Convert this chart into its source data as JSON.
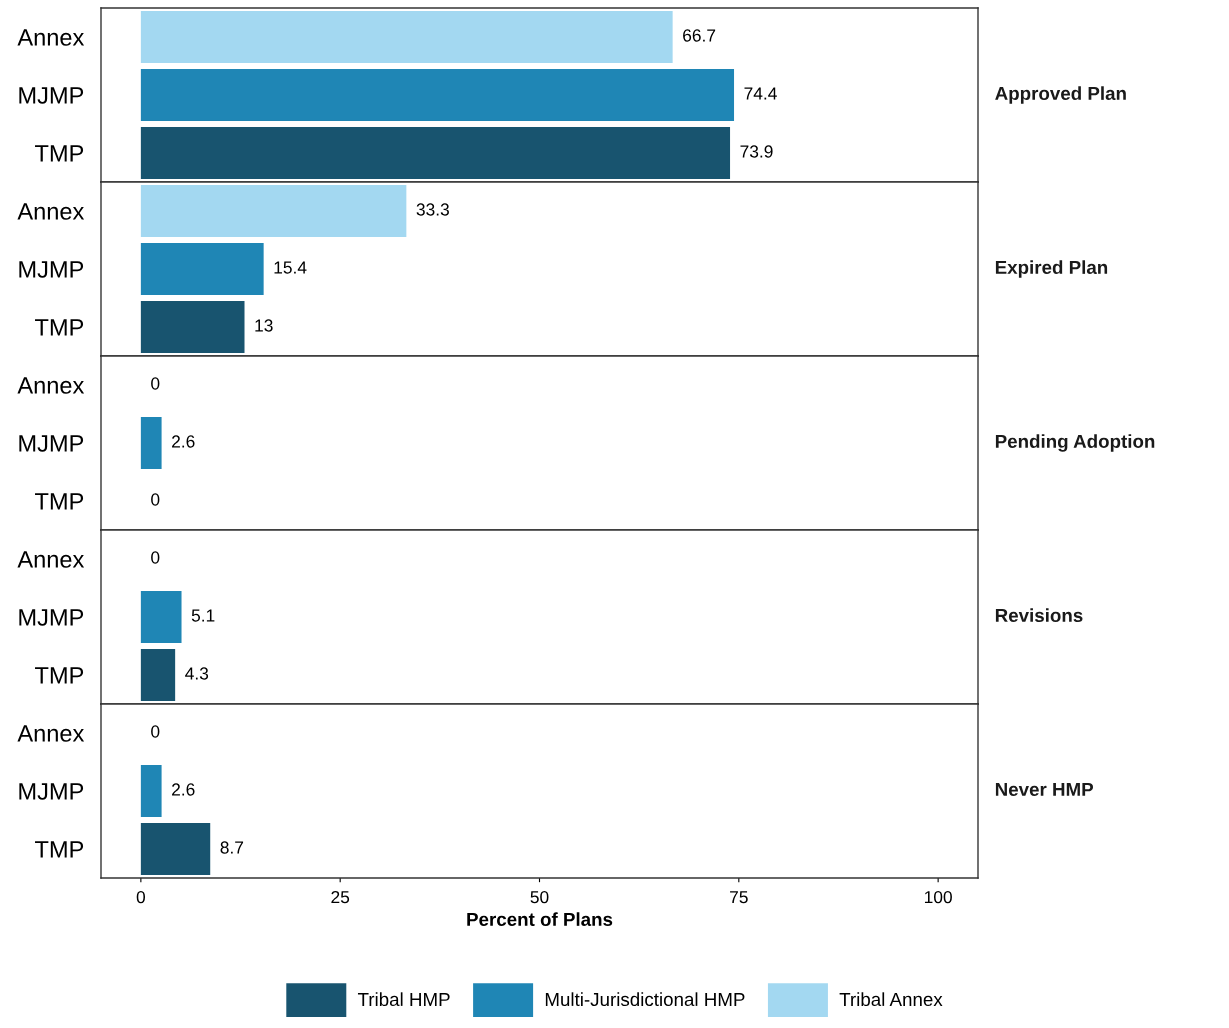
{
  "chart_data": [
    {
      "type": "bar",
      "orientation": "horizontal",
      "y2label": "Approved Plan",
      "categories": [
        "Annex",
        "MJMP",
        "TMP"
      ],
      "series": [
        {
          "name": "Tribal HMP",
          "color": "#18546f",
          "values": [
            null,
            null,
            73.9
          ]
        },
        {
          "name": "Multi-Jurisdictional HMP",
          "color": "#1f86b5",
          "values": [
            null,
            74.4,
            null
          ]
        },
        {
          "name": "Tribal Annex",
          "color": "#a3d8f1",
          "values": [
            66.7,
            null,
            null
          ]
        }
      ],
      "xlim": [
        -5,
        105
      ],
      "xticks": [
        0,
        25,
        50,
        75,
        100
      ],
      "tick_labels": "y",
      "data_labels": true,
      "grid": false,
      "legend": "bottom"
    },
    {
      "type": "bar",
      "orientation": "horizontal",
      "y2label": "Expired Plan",
      "categories": [
        "Annex",
        "MJMP",
        "TMP"
      ],
      "series": [
        {
          "color": "#18546f",
          "values": [
            null,
            null,
            13
          ]
        },
        {
          "color": "#1f86b5",
          "values": [
            null,
            15.4,
            null
          ]
        },
        {
          "color": "#a3d8f1",
          "values": [
            33.3,
            null,
            null
          ]
        }
      ],
      "xlim": [
        -5,
        105
      ],
      "xticks": [
        0,
        25,
        50,
        75,
        100
      ],
      "tick_labels": "y",
      "data_labels": true,
      "grid": false
    },
    {
      "type": "bar",
      "orientation": "horizontal",
      "y2label": "Pending Adoption",
      "categories": [
        "Annex",
        "MJMP",
        "TMP"
      ],
      "series": [
        {
          "color": "#18546f",
          "values": [
            null,
            null,
            0
          ]
        },
        {
          "color": "#1f86b5",
          "values": [
            null,
            2.6,
            null
          ]
        },
        {
          "color": "#a3d8f1",
          "values": [
            0,
            null,
            null
          ]
        }
      ],
      "xlim": [
        -5,
        105
      ],
      "xticks": [
        0,
        25,
        50,
        75,
        100
      ],
      "tick_labels": "y",
      "data_labels": true,
      "grid": false
    },
    {
      "type": "bar",
      "orientation": "horizontal",
      "y2label": "Revisions",
      "categories": [
        "Annex",
        "MJMP",
        "TMP"
      ],
      "series": [
        {
          "color": "#18546f",
          "values": [
            null,
            null,
            4.3
          ]
        },
        {
          "color": "#1f86b5",
          "values": [
            null,
            5.1,
            null
          ]
        },
        {
          "color": "#a3d8f1",
          "values": [
            0,
            null,
            null
          ]
        }
      ],
      "xlim": [
        -5,
        105
      ],
      "xticks": [
        0,
        25,
        50,
        75,
        100
      ],
      "tick_labels": "y",
      "data_labels": true,
      "grid": false
    },
    {
      "type": "bar",
      "orientation": "horizontal",
      "y2label": "Never HMP",
      "xlabel": "Percent of Plans",
      "categories": [
        "Annex",
        "MJMP",
        "TMP"
      ],
      "series": [
        {
          "color": "#18546f",
          "values": [
            null,
            null,
            8.7
          ]
        },
        {
          "color": "#1f86b5",
          "values": [
            null,
            2.6,
            null
          ]
        },
        {
          "color": "#a3d8f1",
          "values": [
            0,
            null,
            null
          ]
        }
      ],
      "xlim": [
        -5,
        105
      ],
      "xticks": [
        0,
        25,
        50,
        75,
        100
      ],
      "data_labels": true,
      "grid": false
    }
  ]
}
